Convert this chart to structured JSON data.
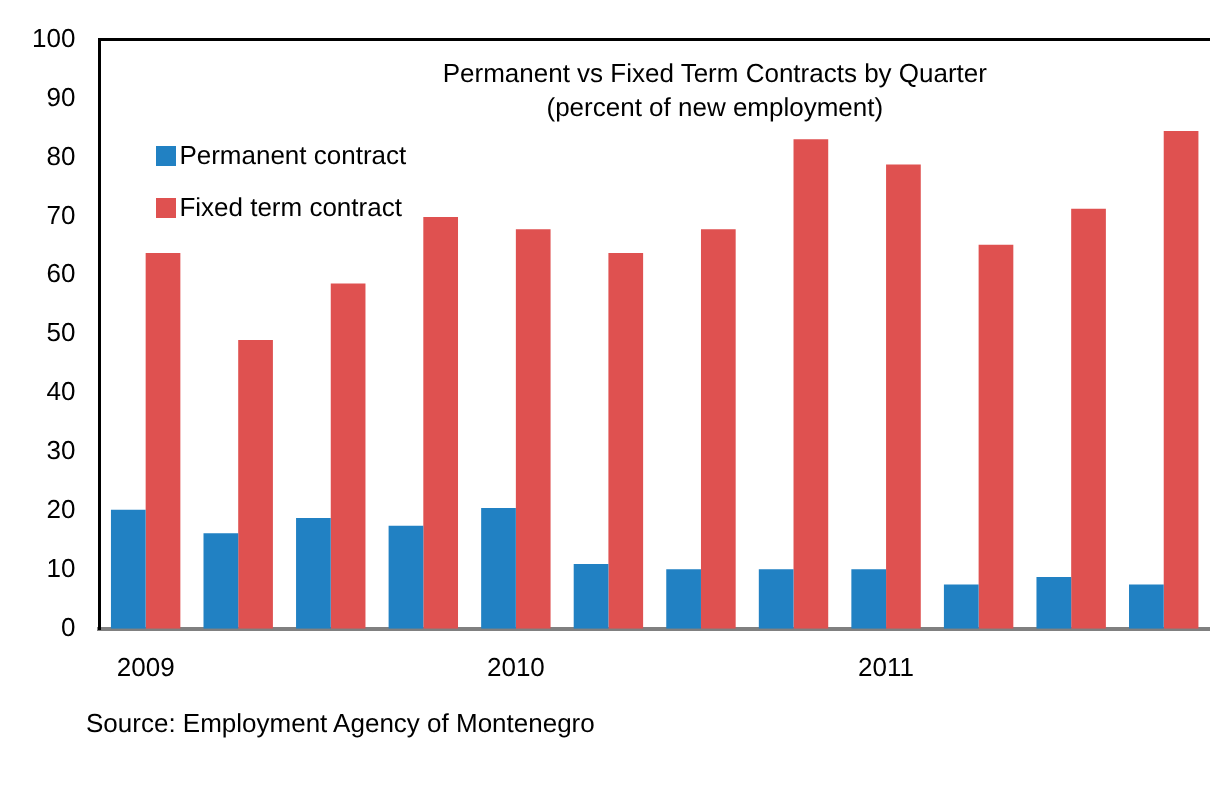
{
  "chart_data": {
    "type": "bar",
    "title": "Permanent vs Fixed Term Contracts by Quarter",
    "subtitle": "(percent of new employment)",
    "categories": [
      "2009",
      null,
      null,
      null,
      "2010",
      null,
      null,
      null,
      "2011",
      null,
      null,
      null
    ],
    "series": [
      {
        "name": "Permanent contract",
        "color": "#2181c3",
        "values": [
          20.2,
          16.2,
          18.8,
          17.5,
          20.5,
          11,
          10.1,
          10.1,
          10.1,
          7.5,
          8.8,
          7.5
        ]
      },
      {
        "name": "Fixed term contract",
        "color": "#df5150",
        "values": [
          63.8,
          49,
          58.6,
          69.9,
          67.8,
          63.8,
          67.8,
          83.1,
          78.8,
          65.2,
          71.3,
          84.5
        ]
      }
    ],
    "ylim": [
      0,
      100
    ],
    "yticks": [
      0,
      10,
      20,
      30,
      40,
      50,
      60,
      70,
      80,
      90,
      100
    ],
    "grid": false,
    "legend": "top left",
    "annotations": [
      "Source: Employment Agency of Montenegro"
    ]
  }
}
